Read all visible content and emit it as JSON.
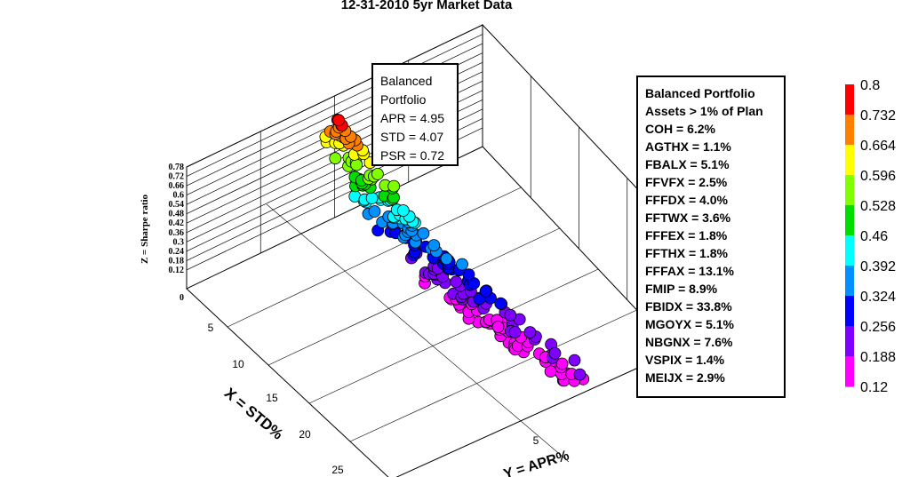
{
  "title": "12-31-2010 5yr Market Data",
  "annotation": {
    "lines": [
      "Balanced",
      "Portfolio",
      "APR = 4.95",
      "STD = 4.07",
      "PSR = 0.72"
    ]
  },
  "legend_box": {
    "title_lines": [
      "Balanced Portfolio",
      "Assets > 1% of Plan"
    ],
    "items": [
      "COH = 6.2%",
      "AGTHX = 1.1%",
      "FBALX = 5.1%",
      "FFVFX = 2.5%",
      "FFFDX = 4.0%",
      "FFTWX = 3.6%",
      "FFFEX = 1.8%",
      "FFTHX = 1.8%",
      "FFFAX = 13.1%",
      "FMIP = 8.9%",
      "FBIDX = 33.8%",
      "MGOYX = 5.1%",
      "NBGNX = 7.6%",
      "VSPIX = 1.4%",
      "MEIJX = 2.9%"
    ]
  },
  "chart_data": {
    "type": "scatter",
    "title": "12-31-2010 5yr Market Data",
    "xlabel": "X = STD%",
    "ylabel": "Y = APR%",
    "zlabel": "Z = Sharpe ratio",
    "x_ticks": [
      "5",
      "10",
      "15",
      "20",
      "25"
    ],
    "y_ticks": [
      "5"
    ],
    "z_ticks": [
      "0",
      "0.12",
      "0.18",
      "0.24",
      "0.3",
      "0.36",
      "0.42",
      "0.48",
      "0.54",
      "0.6",
      "0.66",
      "0.72",
      "0.78"
    ],
    "colorbar": {
      "ticks": [
        "0.8",
        "0.732",
        "0.664",
        "0.596",
        "0.528",
        "0.46",
        "0.392",
        "0.324",
        "0.256",
        "0.188",
        "0.12"
      ],
      "colors": [
        "#ff0000",
        "#ff8000",
        "#ffff00",
        "#80ff00",
        "#00dd00",
        "#00ffff",
        "#0090ff",
        "#0000ff",
        "#8000ff",
        "#ff00ff"
      ]
    },
    "balanced_portfolio": {
      "apr": 4.95,
      "std": 4.07,
      "psr": 0.72
    },
    "points_note": "frontier cloud of simulated portfolios",
    "points": [
      {
        "x": 4.0,
        "y": 4.95,
        "z": 0.78
      },
      {
        "x": 4.1,
        "y": 5.0,
        "z": 0.76
      },
      {
        "x": 4.2,
        "y": 5.05,
        "z": 0.74
      },
      {
        "x": 4.3,
        "y": 5.1,
        "z": 0.72
      },
      {
        "x": 4.4,
        "y": 5.2,
        "z": 0.7
      },
      {
        "x": 4.6,
        "y": 5.3,
        "z": 0.67
      },
      {
        "x": 4.8,
        "y": 5.4,
        "z": 0.64
      },
      {
        "x": 5.0,
        "y": 5.5,
        "z": 0.61
      },
      {
        "x": 5.3,
        "y": 5.6,
        "z": 0.57
      },
      {
        "x": 5.6,
        "y": 5.7,
        "z": 0.53
      },
      {
        "x": 6.0,
        "y": 5.8,
        "z": 0.49
      },
      {
        "x": 6.5,
        "y": 5.9,
        "z": 0.45
      },
      {
        "x": 7.0,
        "y": 6.0,
        "z": 0.42
      },
      {
        "x": 7.6,
        "y": 6.1,
        "z": 0.39
      },
      {
        "x": 8.2,
        "y": 6.2,
        "z": 0.36
      },
      {
        "x": 9.0,
        "y": 6.3,
        "z": 0.33
      },
      {
        "x": 9.8,
        "y": 6.4,
        "z": 0.31
      },
      {
        "x": 10.8,
        "y": 6.5,
        "z": 0.29
      },
      {
        "x": 12.0,
        "y": 6.6,
        "z": 0.27
      },
      {
        "x": 13.5,
        "y": 6.7,
        "z": 0.25
      },
      {
        "x": 15.0,
        "y": 6.8,
        "z": 0.23
      },
      {
        "x": 17.0,
        "y": 6.9,
        "z": 0.21
      },
      {
        "x": 19.0,
        "y": 7.0,
        "z": 0.19
      },
      {
        "x": 21.5,
        "y": 7.1,
        "z": 0.17
      }
    ]
  }
}
